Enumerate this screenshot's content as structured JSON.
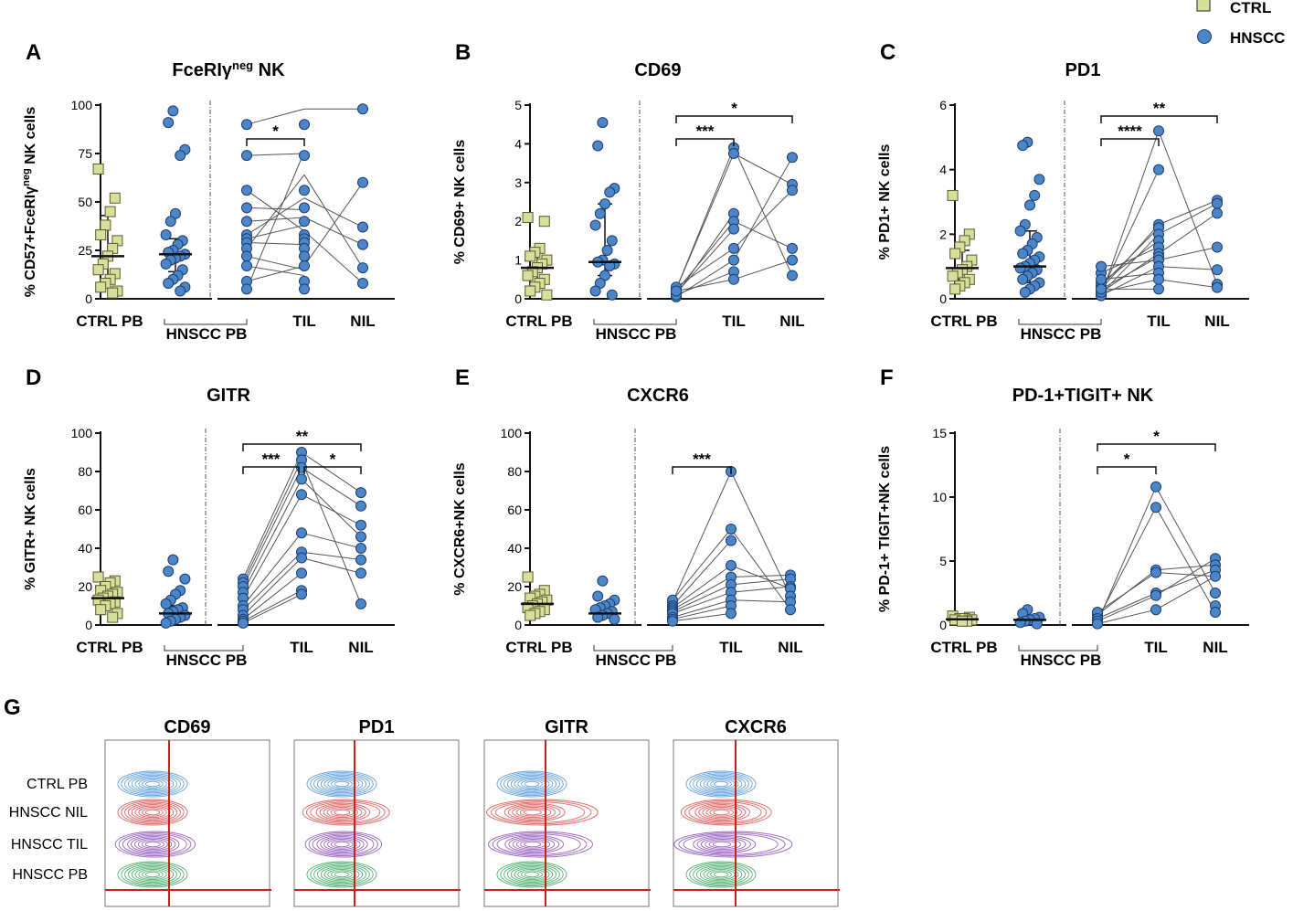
{
  "legend": [
    {
      "label": "CTRL",
      "color": "#d6e09a",
      "shape": "square"
    },
    {
      "label": "HNSCC",
      "color": "#4a86c8",
      "shape": "circle"
    }
  ],
  "chart_data": [
    {
      "letter": "A",
      "type": "scatter",
      "title": "FceRIγ",
      "title_sup": "neg",
      "title_tail": " NK",
      "ylabel": "% CD57+FceRIγ",
      "ylabel_sup": "neg",
      "ylabel_tail": " NK cells",
      "ylim": [
        0,
        100
      ],
      "yticks": [
        0,
        25,
        50,
        75,
        100
      ],
      "categories": [
        "CTRL PB",
        "HNSCC PB",
        "TIL",
        "NIL"
      ],
      "ctrl_pb": {
        "values": [
          67,
          52,
          45,
          38,
          33,
          30,
          26,
          22,
          18,
          15,
          13,
          10,
          8,
          6,
          4,
          3
        ],
        "median": 22,
        "iqr": [
          9,
          43
        ]
      },
      "hnscc_pb": {
        "values": [
          97,
          91,
          77,
          74,
          44,
          40,
          33,
          30,
          28,
          25,
          24,
          23,
          22,
          21,
          20,
          18,
          15,
          12,
          10,
          8,
          6,
          4
        ],
        "median": 23,
        "iqr": [
          14,
          31
        ]
      },
      "til": [
        90,
        74,
        56,
        47,
        40,
        33,
        31,
        29,
        26,
        22,
        17,
        9,
        5
      ],
      "nil": [
        98,
        60,
        37,
        28,
        16,
        8
      ],
      "links_til": [
        [
          90,
          98
        ],
        [
          74,
          75
        ],
        [
          56,
          35
        ],
        [
          47,
          46
        ],
        [
          40,
          42
        ],
        [
          33,
          52
        ],
        [
          31,
          38
        ],
        [
          29,
          28
        ],
        [
          26,
          64
        ],
        [
          22,
          15
        ],
        [
          17,
          12
        ],
        [
          9,
          17
        ],
        [
          5,
          76
        ]
      ],
      "links_nil": [
        [
          98,
          98
        ],
        [
          64,
          16
        ],
        [
          52,
          37
        ],
        [
          42,
          28
        ],
        [
          35,
          8
        ],
        [
          17,
          60
        ]
      ],
      "sig": [
        {
          "from": 2,
          "to": 3,
          "label": "*",
          "level": 0
        }
      ]
    },
    {
      "letter": "B",
      "type": "scatter",
      "title": "CD69",
      "ylabel": "% CD69+ NK cells",
      "ylim": [
        0,
        5
      ],
      "yticks": [
        0,
        1,
        2,
        3,
        4,
        5
      ],
      "categories": [
        "CTRL PB",
        "HNSCC PB",
        "TIL",
        "NIL"
      ],
      "ctrl_pb": {
        "values": [
          2.1,
          2.0,
          1.3,
          1.2,
          1.1,
          1.0,
          0.9,
          0.8,
          0.7,
          0.6,
          0.5,
          0.4,
          0.3,
          0.2,
          0.1
        ],
        "median": 0.8,
        "iqr": [
          0.4,
          1.2
        ]
      },
      "hnscc_pb": {
        "values": [
          4.55,
          3.95,
          2.85,
          2.75,
          2.45,
          2.2,
          1.9,
          1.5,
          1.25,
          1.0,
          0.95,
          0.9,
          0.85,
          0.6,
          0.4,
          0.2,
          0.1
        ],
        "median": 0.95,
        "iqr": [
          0.6,
          2.45
        ]
      },
      "til": [
        3.9,
        3.75,
        2.2,
        2.0,
        1.8,
        1.3,
        1.0,
        0.7,
        0.5
      ],
      "nil": [
        3.65,
        2.95,
        2.8,
        1.3,
        1.0,
        0.6
      ],
      "links_til": [
        [
          0.25,
          3.9
        ],
        [
          0.25,
          3.75
        ],
        [
          0.1,
          2.2
        ],
        [
          0.2,
          2.0
        ],
        [
          0.15,
          1.8
        ],
        [
          0.3,
          1.3
        ],
        [
          0.05,
          1.0
        ],
        [
          0.1,
          0.7
        ],
        [
          0.2,
          0.5
        ]
      ],
      "links_nil": [
        [
          3.9,
          0.6
        ],
        [
          3.75,
          2.95
        ],
        [
          1.0,
          3.65
        ],
        [
          1.3,
          2.8
        ],
        [
          0.5,
          1.0
        ],
        [
          2.0,
          1.3
        ]
      ],
      "sig": [
        {
          "from": 2,
          "to": 3,
          "label": "***",
          "level": 0
        },
        {
          "from": 2,
          "to": 4,
          "label": "*",
          "level": 1
        }
      ]
    },
    {
      "letter": "C",
      "type": "scatter",
      "title": "PD1",
      "ylabel": "% PD1+ NK cells",
      "ylim": [
        0,
        6
      ],
      "yticks": [
        0,
        2,
        4,
        6
      ],
      "categories": [
        "CTRL PB",
        "HNSCC PB",
        "TIL",
        "NIL"
      ],
      "ctrl_pb": {
        "values": [
          3.2,
          2.0,
          1.8,
          1.6,
          1.4,
          1.2,
          1.0,
          0.9,
          0.8,
          0.7,
          0.6,
          0.5,
          0.4,
          0.3
        ],
        "median": 0.95,
        "iqr": [
          0.6,
          1.5
        ]
      },
      "hnscc_pb": {
        "values": [
          4.85,
          4.75,
          3.7,
          3.2,
          2.9,
          2.3,
          2.1,
          1.9,
          1.7,
          1.5,
          1.4,
          1.3,
          1.2,
          1.1,
          1.0,
          0.95,
          0.9,
          0.8,
          0.7,
          0.6,
          0.5,
          0.4,
          0.3,
          0.2
        ],
        "median": 1.0,
        "iqr": [
          0.5,
          2.1
        ]
      },
      "til": [
        5.2,
        4.0,
        2.3,
        2.2,
        2.0,
        1.8,
        1.6,
        1.4,
        1.3,
        1.2,
        1.0,
        0.8,
        0.6,
        0.3
      ],
      "nil": [
        3.05,
        2.95,
        2.65,
        1.6,
        0.9,
        0.45,
        0.35
      ],
      "links_til": [
        [
          0.1,
          5.2
        ],
        [
          0.2,
          4.0
        ],
        [
          0.3,
          2.3
        ],
        [
          0.4,
          2.2
        ],
        [
          0.15,
          2.0
        ],
        [
          0.5,
          1.8
        ],
        [
          0.8,
          1.6
        ],
        [
          0.2,
          1.4
        ],
        [
          0.3,
          1.3
        ],
        [
          1.0,
          1.2
        ],
        [
          0.1,
          1.0
        ],
        [
          0.6,
          0.8
        ],
        [
          0.2,
          0.6
        ],
        [
          0.3,
          0.3
        ]
      ],
      "links_nil": [
        [
          5.2,
          0.45
        ],
        [
          2.3,
          3.05
        ],
        [
          2.0,
          2.95
        ],
        [
          1.4,
          2.65
        ],
        [
          1.2,
          1.6
        ],
        [
          1.0,
          0.9
        ],
        [
          0.6,
          0.35
        ]
      ],
      "sig": [
        {
          "from": 2,
          "to": 3,
          "label": "****",
          "level": 0
        },
        {
          "from": 2,
          "to": 4,
          "label": "**",
          "level": 1
        }
      ]
    },
    {
      "letter": "D",
      "type": "scatter",
      "title": "GITR",
      "ylabel": "% GITR+ NK cells",
      "ylim": [
        0,
        100
      ],
      "yticks": [
        0,
        20,
        40,
        60,
        80,
        100
      ],
      "categories": [
        "CTRL PB",
        "HNSCC PB",
        "TIL",
        "NIL"
      ],
      "ctrl_pb": {
        "values": [
          25,
          23,
          22,
          20,
          18,
          17,
          16,
          15,
          14,
          13,
          12,
          11,
          10,
          8,
          6,
          4
        ],
        "median": 14,
        "iqr": [
          9,
          21
        ]
      },
      "hnscc_pb": {
        "values": [
          34,
          28,
          24,
          18,
          16,
          13,
          11,
          9,
          8,
          7,
          6,
          5,
          4,
          3,
          2,
          1
        ],
        "median": 6,
        "iqr": [
          2,
          10
        ]
      },
      "til": [
        90,
        86,
        82,
        76,
        68,
        48,
        38,
        35,
        27,
        18,
        16
      ],
      "nil": [
        69,
        62,
        52,
        46,
        40,
        34,
        27,
        11
      ],
      "links_til": [
        [
          24,
          90
        ],
        [
          22,
          86
        ],
        [
          20,
          82
        ],
        [
          17,
          76
        ],
        [
          14,
          68
        ],
        [
          10,
          48
        ],
        [
          8,
          38
        ],
        [
          5,
          35
        ],
        [
          3,
          27
        ],
        [
          2,
          18
        ],
        [
          1,
          16
        ]
      ],
      "links_nil": [
        [
          90,
          69
        ],
        [
          82,
          62
        ],
        [
          76,
          46
        ],
        [
          68,
          52
        ],
        [
          48,
          40
        ],
        [
          38,
          34
        ],
        [
          35,
          27
        ],
        [
          86,
          11
        ]
      ],
      "sig": [
        {
          "from": 2,
          "to": 3,
          "label": "***",
          "level": 0
        },
        {
          "from": 3,
          "to": 4,
          "label": "*",
          "level": 0
        },
        {
          "from": 2,
          "to": 4,
          "label": "**",
          "level": 1
        }
      ]
    },
    {
      "letter": "E",
      "type": "scatter",
      "title": "CXCR6",
      "ylabel": "% CXCR6+NK cells",
      "ylim": [
        0,
        100
      ],
      "yticks": [
        0,
        20,
        40,
        60,
        80,
        100
      ],
      "categories": [
        "CTRL PB",
        "HNSCC PB",
        "TIL",
        "NIL"
      ],
      "ctrl_pb": {
        "values": [
          25,
          18,
          16,
          15,
          14,
          13,
          12,
          11,
          10,
          9,
          8,
          7,
          6,
          5
        ],
        "median": 11,
        "iqr": [
          7,
          15
        ]
      },
      "hnscc_pb": {
        "values": [
          23,
          15,
          13,
          11,
          10,
          9,
          8,
          7,
          6,
          5,
          4,
          3
        ],
        "median": 6,
        "iqr": [
          4,
          10
        ]
      },
      "til": [
        80,
        50,
        44,
        31,
        25,
        21,
        17,
        13,
        10,
        6
      ],
      "nil": [
        26,
        24,
        20,
        19,
        15,
        12,
        8
      ],
      "links_til": [
        [
          12,
          80
        ],
        [
          13,
          50
        ],
        [
          10,
          44
        ],
        [
          9,
          31
        ],
        [
          8,
          25
        ],
        [
          7,
          21
        ],
        [
          6,
          17
        ],
        [
          4,
          13
        ],
        [
          3,
          10
        ],
        [
          2,
          6
        ]
      ],
      "links_nil": [
        [
          80,
          15
        ],
        [
          50,
          8
        ],
        [
          31,
          19
        ],
        [
          25,
          26
        ],
        [
          21,
          24
        ],
        [
          17,
          20
        ],
        [
          13,
          12
        ]
      ],
      "sig": [
        {
          "from": 2,
          "to": 3,
          "label": "***",
          "level": 0
        }
      ]
    },
    {
      "letter": "F",
      "type": "scatter",
      "title": "PD-1+TIGIT+ NK",
      "ylabel": "% PD-1+ TIGIT+NK cells",
      "ylim": [
        0,
        15
      ],
      "yticks": [
        0,
        5,
        10,
        15
      ],
      "categories": [
        "CTRL PB",
        "HNSCC PB",
        "TIL",
        "NIL"
      ],
      "ctrl_pb": {
        "values": [
          0.7,
          0.6,
          0.5,
          0.5,
          0.4,
          0.4,
          0.3,
          0.3
        ],
        "median": 0.45,
        "iqr": [
          0.3,
          0.6
        ]
      },
      "hnscc_pb": {
        "values": [
          1.2,
          0.9,
          0.6,
          0.5,
          0.4,
          0.3,
          0.2,
          0.1
        ],
        "median": 0.4,
        "iqr": [
          0.2,
          0.7
        ]
      },
      "til": [
        10.8,
        9.2,
        4.3,
        4.1,
        2.5,
        2.3,
        1.2
      ],
      "nil": [
        5.2,
        4.7,
        4.3,
        3.8,
        2.5,
        1.5,
        1.0
      ],
      "links_til": [
        [
          0.2,
          10.8
        ],
        [
          0.4,
          9.2
        ],
        [
          0.8,
          4.3
        ],
        [
          1.0,
          4.1
        ],
        [
          0.5,
          2.5
        ],
        [
          0.3,
          2.3
        ],
        [
          0.1,
          1.2
        ]
      ],
      "links_nil": [
        [
          10.8,
          2.5
        ],
        [
          9.2,
          1.0
        ],
        [
          4.3,
          4.7
        ],
        [
          4.1,
          3.8
        ],
        [
          2.5,
          4.3
        ],
        [
          2.3,
          5.2
        ],
        [
          1.2,
          3.8
        ]
      ],
      "sig": [
        {
          "from": 2,
          "to": 3,
          "label": "*",
          "level": 0
        },
        {
          "from": 2,
          "to": 4,
          "label": "*",
          "level": 1
        }
      ]
    }
  ],
  "flow": {
    "letter": "G",
    "rows": [
      "CTRL PB",
      "HNSCC NIL",
      "HNSCC TIL",
      "HNSCC PB"
    ],
    "row_colors": [
      "#4a90d9",
      "#d94a4a",
      "#8a4ab8",
      "#3aa55a"
    ],
    "gate_color": "#cc1f1f",
    "panels": [
      {
        "title": "CD69",
        "extents": [
          1.0,
          1.0,
          1.15,
          1.0
        ]
      },
      {
        "title": "PD1",
        "extents": [
          1.0,
          1.25,
          1.1,
          1.0
        ]
      },
      {
        "title": "GITR",
        "extents": [
          1.0,
          1.6,
          1.5,
          1.0
        ]
      },
      {
        "title": "CXCR6",
        "extents": [
          1.0,
          1.3,
          1.7,
          1.0
        ]
      }
    ]
  }
}
